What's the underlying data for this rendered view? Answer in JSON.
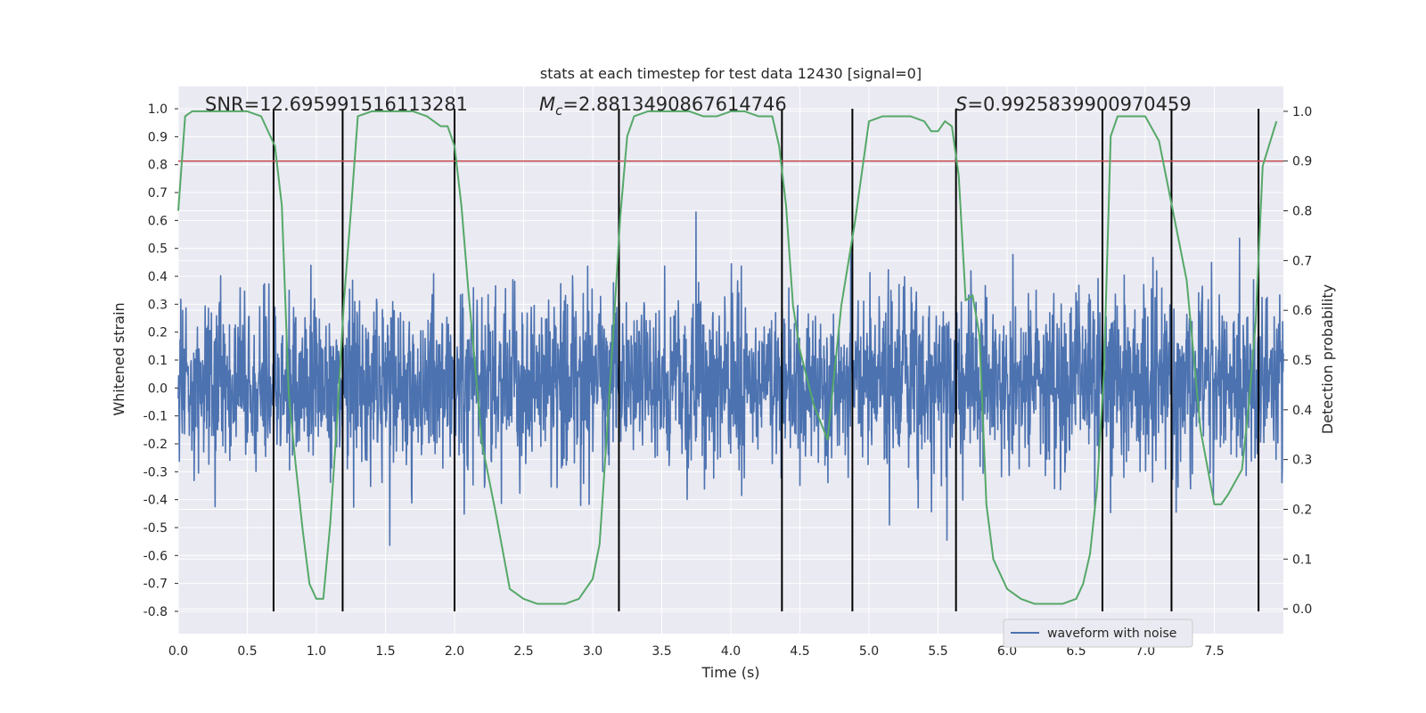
{
  "chart_data": {
    "type": "line",
    "title": "stats at each timestep for test data 12430 [signal=0]",
    "xlabel": "Time (s)",
    "ylabel": "Whitened strain",
    "y2label": "Detection probability",
    "xlim": [
      0.0,
      8.0
    ],
    "ylim": [
      -0.88,
      1.08
    ],
    "y2lim": [
      -0.05,
      1.05
    ],
    "x_ticks": [
      "0.0",
      "0.5",
      "1.0",
      "1.5",
      "2.0",
      "2.5",
      "3.0",
      "3.5",
      "4.0",
      "4.5",
      "5.0",
      "5.5",
      "6.0",
      "6.5",
      "7.0",
      "7.5"
    ],
    "y_ticks": [
      "1.0",
      "0.9",
      "0.8",
      "0.7",
      "0.6",
      "0.5",
      "0.4",
      "0.3",
      "0.2",
      "0.1",
      "0.0",
      "-0.1",
      "-0.2",
      "-0.3",
      "-0.4",
      "-0.5",
      "-0.6",
      "-0.7",
      "-0.8"
    ],
    "y2_ticks": [
      "1.0",
      "0.9",
      "0.8",
      "0.7",
      "0.6",
      "0.5",
      "0.4",
      "0.3",
      "0.2",
      "0.1",
      "0.0"
    ],
    "grid": true,
    "legend_position": "bottom-right",
    "annotations": {
      "snr": "SNR=12.695991516113281",
      "mc": "=2.8813490867614746",
      "mc_symbol": "M",
      "mc_sub": "c",
      "s": "=0.9925839900970459",
      "s_symbol": "S"
    },
    "series": [
      {
        "name": "waveform with noise",
        "kind": "noise",
        "color": "#4c72b0",
        "samples": 3000,
        "typical_range": [
          -0.42,
          0.5
        ],
        "peak_range": [
          -0.78,
          1.0
        ]
      },
      {
        "kind": "detection_probability",
        "axis": "right",
        "color": "#55a868",
        "x": [
          0.0,
          0.05,
          0.1,
          0.2,
          0.3,
          0.4,
          0.5,
          0.6,
          0.65,
          0.7,
          0.75,
          0.8,
          0.85,
          0.9,
          0.95,
          1.0,
          1.05,
          1.1,
          1.15,
          1.2,
          1.25,
          1.3,
          1.4,
          1.5,
          1.6,
          1.7,
          1.8,
          1.9,
          1.95,
          2.0,
          2.05,
          2.1,
          2.2,
          2.3,
          2.4,
          2.5,
          2.6,
          2.7,
          2.8,
          2.9,
          3.0,
          3.05,
          3.1,
          3.15,
          3.2,
          3.25,
          3.3,
          3.4,
          3.5,
          3.6,
          3.7,
          3.8,
          3.9,
          4.0,
          4.1,
          4.2,
          4.3,
          4.35,
          4.4,
          4.45,
          4.5,
          4.6,
          4.7,
          4.8,
          4.9,
          5.0,
          5.1,
          5.2,
          5.3,
          5.4,
          5.45,
          5.5,
          5.55,
          5.6,
          5.65,
          5.7,
          5.75,
          5.8,
          5.85,
          5.9,
          6.0,
          6.1,
          6.2,
          6.3,
          6.4,
          6.5,
          6.55,
          6.6,
          6.65,
          6.7,
          6.75,
          6.8,
          6.9,
          7.0,
          7.1,
          7.2,
          7.3,
          7.4,
          7.5,
          7.55,
          7.6,
          7.7,
          7.75,
          7.8,
          7.85,
          7.95
        ],
        "y": [
          0.8,
          0.99,
          1.0,
          1.0,
          1.0,
          1.0,
          1.0,
          0.99,
          0.96,
          0.93,
          0.81,
          0.43,
          0.29,
          0.16,
          0.05,
          0.02,
          0.02,
          0.17,
          0.38,
          0.62,
          0.8,
          0.99,
          1.0,
          1.0,
          1.0,
          1.0,
          0.99,
          0.97,
          0.97,
          0.93,
          0.81,
          0.64,
          0.33,
          0.19,
          0.04,
          0.02,
          0.01,
          0.01,
          0.01,
          0.02,
          0.06,
          0.13,
          0.34,
          0.56,
          0.79,
          0.95,
          0.99,
          1.0,
          1.0,
          1.0,
          1.0,
          0.99,
          0.99,
          1.0,
          1.0,
          0.99,
          0.99,
          0.93,
          0.81,
          0.61,
          0.52,
          0.41,
          0.34,
          0.61,
          0.78,
          0.98,
          0.99,
          0.99,
          0.99,
          0.98,
          0.96,
          0.96,
          0.98,
          0.97,
          0.87,
          0.62,
          0.63,
          0.55,
          0.21,
          0.1,
          0.04,
          0.02,
          0.01,
          0.01,
          0.01,
          0.02,
          0.05,
          0.11,
          0.24,
          0.47,
          0.95,
          0.99,
          0.99,
          0.99,
          0.94,
          0.8,
          0.66,
          0.36,
          0.21,
          0.21,
          0.23,
          0.28,
          0.41,
          0.58,
          0.89,
          0.98
        ]
      },
      {
        "kind": "threshold",
        "axis": "right",
        "color": "#c44e52",
        "value": 0.9
      }
    ],
    "vertical_lines": [
      0.69,
      1.19,
      2.0,
      3.19,
      4.37,
      4.88,
      5.63,
      6.69,
      7.19,
      7.82
    ]
  },
  "legend": {
    "label": "waveform with noise"
  }
}
